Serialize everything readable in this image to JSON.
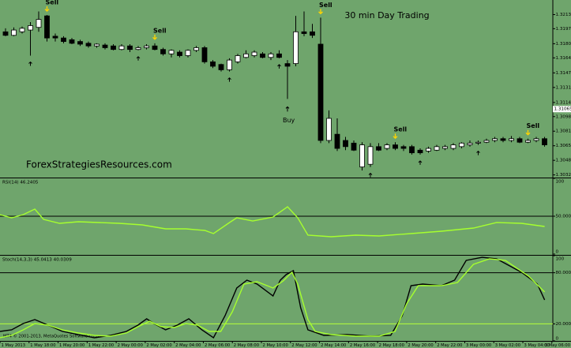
{
  "footer": "MT4 © 2001-2013, MetaQuotes Software Corp.",
  "chart_data": [
    {
      "type": "candlestick",
      "title": "30 min Day Trading",
      "watermark": "ForexStrategiesResources.com",
      "annotations": [
        "Sell",
        "Sell",
        "Sell",
        "Sell",
        "Sell",
        "Buy"
      ],
      "current_price": 1.31065,
      "open": [
        1.3194,
        1.319,
        1.3194,
        1.3196,
        1.3199,
        1.3212,
        1.3189,
        1.3187,
        1.3185,
        1.3183,
        1.3181,
        1.3178,
        1.3179,
        1.3178,
        1.3174,
        1.3178,
        1.3174,
        1.3176,
        1.3178,
        1.3174,
        1.3169,
        1.3171,
        1.3167,
        1.3173,
        1.3176,
        1.316,
        1.3157,
        1.3151,
        1.316,
        1.3165,
        1.3167,
        1.3169,
        1.3165,
        1.3169,
        1.3158,
        1.3158,
        1.3194,
        1.3194,
        1.318,
        1.3071,
        1.3078,
        1.3071,
        1.3068,
        1.3041,
        1.3044,
        1.3064,
        1.3062,
        1.3066,
        1.3064,
        1.3064,
        1.306,
        1.3059,
        1.306,
        1.3062,
        1.3062,
        1.3064,
        1.3066,
        1.3068,
        1.3069,
        1.3071,
        1.3073,
        1.3071,
        1.3073,
        1.3069,
        1.3071,
        1.3073
      ],
      "high": [
        1.3198,
        1.3199,
        1.32,
        1.3205,
        1.3217,
        1.3213,
        1.3192,
        1.3189,
        1.3187,
        1.3185,
        1.3183,
        1.3181,
        1.3181,
        1.318,
        1.318,
        1.318,
        1.3178,
        1.318,
        1.3181,
        1.3176,
        1.3174,
        1.3173,
        1.3174,
        1.3178,
        1.3178,
        1.3162,
        1.3158,
        1.3164,
        1.3169,
        1.3173,
        1.3173,
        1.3171,
        1.3171,
        1.3173,
        1.3162,
        1.3212,
        1.3217,
        1.3203,
        1.321,
        1.3105,
        1.3096,
        1.3075,
        1.3071,
        1.3069,
        1.3068,
        1.3068,
        1.3068,
        1.3069,
        1.3066,
        1.3066,
        1.3062,
        1.3064,
        1.3066,
        1.3066,
        1.3068,
        1.3069,
        1.3071,
        1.3071,
        1.3073,
        1.3075,
        1.3075,
        1.3076,
        1.3075,
        1.3073,
        1.3075,
        1.3075
      ],
      "low": [
        1.3189,
        1.3189,
        1.3192,
        1.3167,
        1.3194,
        1.3183,
        1.3183,
        1.3181,
        1.318,
        1.3178,
        1.3176,
        1.3176,
        1.3174,
        1.3173,
        1.3173,
        1.3171,
        1.3173,
        1.3174,
        1.3173,
        1.3167,
        1.3165,
        1.3165,
        1.3165,
        1.3171,
        1.3158,
        1.3153,
        1.3149,
        1.3149,
        1.3158,
        1.3164,
        1.3165,
        1.3164,
        1.3162,
        1.3164,
        1.3118,
        1.3155,
        1.3189,
        1.3187,
        1.3068,
        1.3068,
        1.3059,
        1.306,
        1.3059,
        1.3037,
        1.3041,
        1.3059,
        1.306,
        1.306,
        1.3059,
        1.3055,
        1.3055,
        1.3057,
        1.3059,
        1.306,
        1.306,
        1.3062,
        1.3064,
        1.3066,
        1.3068,
        1.3069,
        1.3069,
        1.3069,
        1.3068,
        1.3068,
        1.3069,
        1.3064
      ],
      "close": [
        1.319,
        1.3196,
        1.3198,
        1.3201,
        1.3208,
        1.3187,
        1.3187,
        1.3183,
        1.3181,
        1.318,
        1.3178,
        1.318,
        1.3176,
        1.3174,
        1.3178,
        1.3174,
        1.3176,
        1.3178,
        1.3174,
        1.3169,
        1.3173,
        1.3167,
        1.3173,
        1.3176,
        1.316,
        1.3155,
        1.3151,
        1.3162,
        1.3167,
        1.3169,
        1.3171,
        1.3165,
        1.3169,
        1.3165,
        1.3155,
        1.3194,
        1.3192,
        1.319,
        1.3071,
        1.3096,
        1.3062,
        1.3064,
        1.306,
        1.3066,
        1.3064,
        1.306,
        1.3066,
        1.3062,
        1.3062,
        1.3057,
        1.3057,
        1.3062,
        1.3064,
        1.3064,
        1.3066,
        1.3068,
        1.3068,
        1.3069,
        1.3071,
        1.3073,
        1.3071,
        1.3073,
        1.3069,
        1.3071,
        1.3073,
        1.3066
      ],
      "up_color": "#ffffff",
      "down_color": "#000000",
      "ylim": [
        1.3029,
        1.323
      ],
      "yticks": [
        1.32135,
        1.31975,
        1.31805,
        1.31645,
        1.31475,
        {
          "value": 1.3131,
          "label": "1.31310"
        },
        {
          "value": 1.3114,
          "label": "1.31140"
        },
        {
          "value": 1.3098,
          "label": "1.30980"
        },
        1.30815,
        {
          "value": 1.3065,
          "label": "1.30650"
        },
        1.30485,
        {
          "value": 1.3032,
          "label": "1.30320"
        }
      ]
    },
    {
      "type": "line",
      "label": "RSI(14) 46.2405",
      "x": [
        0,
        0.8,
        1.6,
        2.4,
        3,
        4.1,
        5.4,
        6.8,
        8.2,
        9.8,
        11.4,
        12.8,
        14.1,
        14.7,
        15.8,
        16.3,
        17.4,
        18.8,
        19.8,
        20.5,
        21.2,
        22.8,
        24.5,
        26.1,
        28.3,
        30.4,
        32.6,
        34.2,
        35.9,
        37.5
      ],
      "series": [
        {
          "color": "#a6ff2e",
          "values": [
            52.1,
            47.9,
            52.1,
            59.4,
            45.8,
            40.6,
            42.7,
            41.7,
            40.6,
            38.5,
            33.3,
            33.3,
            31.3,
            27.1,
            41.7,
            47.9,
            43.8,
            49.0,
            62.5,
            47.9,
            25.0,
            22.9,
            25.0,
            24.0,
            27.1,
            30.2,
            34.4,
            41.7,
            40.6,
            36.5
          ]
        }
      ],
      "xlim": [
        0,
        38.5
      ],
      "ylim": [
        0,
        100
      ],
      "yticks": [
        0,
        {
          "value": 50,
          "label": "50.0000"
        },
        100
      ],
      "level_colors": [
        "#000000"
      ]
    },
    {
      "type": "line",
      "label": "Stoch(14,3,3) 45.0413 40.0309",
      "xlim": [
        0,
        38.5
      ],
      "ylim": [
        0,
        100
      ],
      "yticks": [
        0,
        {
          "value": 20,
          "label": "20.0000"
        },
        {
          "value": 80,
          "label": "80.0000"
        },
        100
      ],
      "level_colors": [
        "#b6ff3a",
        "#000000"
      ],
      "series": [
        {
          "color": "#000000",
          "x": [
            0,
            0.8,
            1.6,
            2.4,
            3.3,
            4.3,
            5.4,
            6.5,
            7.6,
            8.7,
            9.5,
            10.1,
            10.6,
            11.4,
            12.2,
            13.0,
            13.9,
            14.7,
            15.5,
            16.3,
            17.0,
            17.7,
            18.8,
            19.3,
            19.7,
            20.2,
            20.7,
            21.2,
            22.3,
            23.9,
            25.5,
            26.9,
            27.7,
            28.3,
            29.1,
            30.4,
            31.3,
            32.1,
            33.2,
            34.2,
            35.9,
            37.0,
            37.5
          ],
          "values": [
            11.1,
            13.0,
            20.4,
            25.0,
            18.5,
            11.1,
            7.4,
            3.7,
            6.5,
            11.1,
            18.5,
            25.9,
            20.4,
            13.0,
            18.5,
            25.9,
            13.0,
            3.7,
            29.6,
            62.0,
            71.3,
            66.7,
            52.8,
            71.3,
            77.8,
            82.4,
            38.9,
            13.0,
            6.5,
            7.4,
            5.6,
            6.5,
            29.6,
            64.8,
            66.7,
            64.8,
            71.3,
            94.4,
            98.1,
            96.3,
            80.6,
            66.7,
            48.1
          ]
        },
        {
          "color": "#a6ff2e",
          "x": [
            0,
            0.8,
            1.6,
            2.4,
            3.3,
            4.3,
            5.4,
            6.5,
            7.6,
            8.7,
            9.5,
            10.3,
            11.1,
            12.0,
            12.8,
            13.6,
            14.4,
            15.2,
            16.0,
            16.8,
            17.7,
            18.8,
            19.5,
            20.1,
            20.5,
            21.2,
            21.7,
            22.8,
            24.5,
            26.1,
            27.2,
            28.0,
            28.8,
            30.4,
            31.5,
            32.6,
            33.7,
            34.8,
            36.4,
            37.5
          ],
          "values": [
            3.7,
            6.5,
            13.0,
            20.4,
            18.5,
            13.0,
            9.3,
            6.5,
            5.6,
            9.3,
            16.7,
            23.1,
            16.7,
            15.7,
            20.4,
            18.5,
            11.1,
            11.1,
            34.3,
            66.7,
            69.4,
            62.0,
            70.4,
            80.6,
            66.7,
            25.0,
            11.1,
            7.4,
            5.6,
            5.6,
            11.1,
            43.5,
            64.8,
            64.8,
            68.5,
            89.8,
            96.3,
            94.4,
            75.9,
            57.4
          ]
        }
      ],
      "xticks": [
        {
          "value": 0,
          "label": "1 May 2013"
        },
        {
          "value": 2,
          "label": "1 May 18:00"
        },
        {
          "value": 4,
          "label": "1 May 20:00"
        },
        {
          "value": 6,
          "label": "1 May 22:00"
        },
        {
          "value": 8,
          "label": "2 May 00:00"
        },
        {
          "value": 10,
          "label": "2 May 02:00"
        },
        {
          "value": 12,
          "label": "2 May 04:00"
        },
        {
          "value": 14,
          "label": "2 May 06:00"
        },
        {
          "value": 16,
          "label": "2 May 08:00"
        },
        {
          "value": 18,
          "label": "2 May 10:00"
        },
        {
          "value": 20,
          "label": "2 May 12:00"
        },
        {
          "value": 22,
          "label": "2 May 14:00"
        },
        {
          "value": 24,
          "label": "2 May 16:00"
        },
        {
          "value": 26,
          "label": "2 May 18:00"
        },
        {
          "value": 28,
          "label": "2 May 20:00"
        },
        {
          "value": 30,
          "label": "2 May 22:00"
        },
        {
          "value": 32,
          "label": "3 May 00:00"
        },
        {
          "value": 34,
          "label": "3 May 02:00"
        },
        {
          "value": 36,
          "label": "3 May 04:00"
        },
        {
          "value": 38,
          "label": "3 May 06:00"
        }
      ]
    }
  ]
}
